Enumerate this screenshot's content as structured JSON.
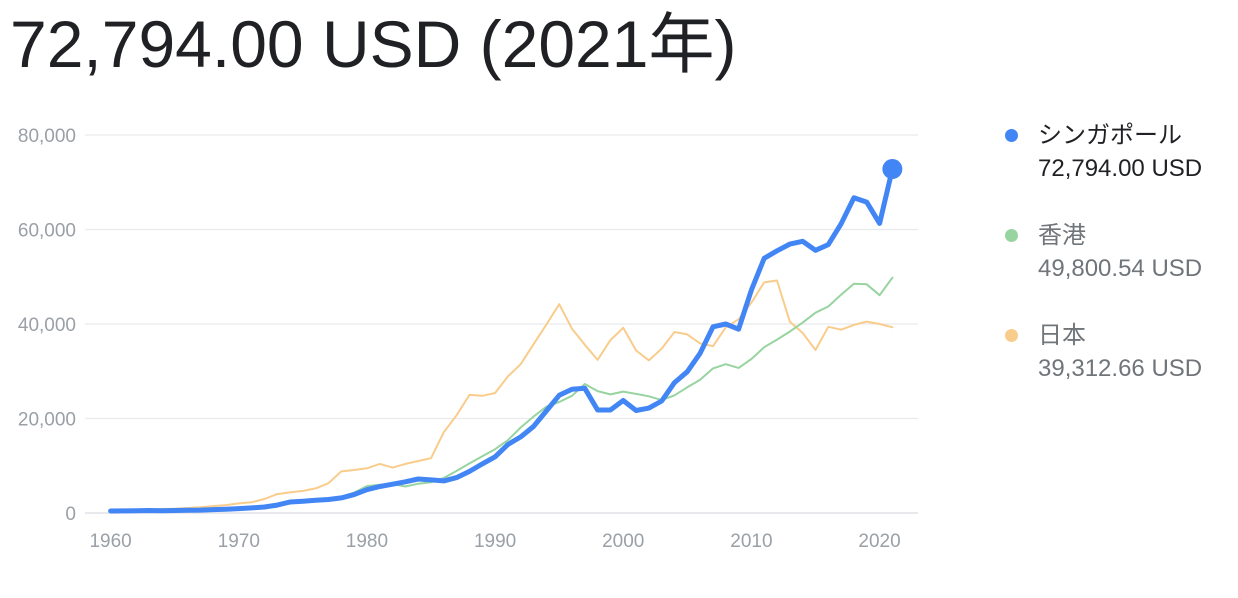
{
  "headline": "72,794.00 USD (2021年)",
  "legend": [
    {
      "name": "シンガポール",
      "value": "72,794.00 USD"
    },
    {
      "name": "香港",
      "value": "49,800.54 USD"
    },
    {
      "name": "日本",
      "value": "39,312.66 USD"
    }
  ],
  "colors": {
    "singapore": "#4285f4",
    "hongkong": "#97d4a0",
    "japan": "#f9cc8c",
    "grid": "#e8eaed",
    "tick_text": "#9aa0a6"
  },
  "chart_data": {
    "type": "line",
    "title": "",
    "xlabel": "",
    "ylabel": "",
    "xlim": [
      1960,
      2021
    ],
    "ylim": [
      0,
      80000
    ],
    "grid": true,
    "legend_position": "right",
    "y_ticks": [
      0,
      20000,
      40000,
      60000,
      80000
    ],
    "y_tick_labels": [
      "0",
      "20,000",
      "40,000",
      "60,000",
      "80,000"
    ],
    "x_ticks": [
      1960,
      1970,
      1980,
      1990,
      2000,
      2010,
      2020
    ],
    "x_tick_labels": [
      "1960",
      "1970",
      "1980",
      "1990",
      "2000",
      "2010",
      "2020"
    ],
    "x": [
      1960,
      1961,
      1962,
      1963,
      1964,
      1965,
      1966,
      1967,
      1968,
      1969,
      1970,
      1971,
      1972,
      1973,
      1974,
      1975,
      1976,
      1977,
      1978,
      1979,
      1980,
      1981,
      1982,
      1983,
      1984,
      1985,
      1986,
      1987,
      1988,
      1989,
      1990,
      1991,
      1992,
      1993,
      1994,
      1995,
      1996,
      1997,
      1998,
      1999,
      2000,
      2001,
      2002,
      2003,
      2004,
      2005,
      2006,
      2007,
      2008,
      2009,
      2010,
      2011,
      2012,
      2013,
      2014,
      2015,
      2016,
      2017,
      2018,
      2019,
      2020,
      2021
    ],
    "series": [
      {
        "name": "シンガポール",
        "values": [
          430,
          450,
          480,
          520,
          490,
          520,
          570,
          620,
          710,
          810,
          930,
          1080,
          1270,
          1680,
          2330,
          2500,
          2700,
          2850,
          3200,
          3900,
          4930,
          5600,
          6100,
          6600,
          7200,
          7000,
          6800,
          7500,
          8800,
          10400,
          11900,
          14500,
          16100,
          18300,
          21600,
          24900,
          26200,
          26400,
          21800,
          21800,
          23800,
          21700,
          22200,
          23700,
          27600,
          29900,
          33800,
          39400,
          40000,
          38900,
          47200,
          53900,
          55500,
          56900,
          57500,
          55600,
          56800,
          61200,
          66700,
          65800,
          61300,
          72794
        ]
      },
      {
        "name": "香港",
        "values": [
          430,
          450,
          480,
          530,
          580,
          680,
          710,
          700,
          720,
          840,
          960,
          1100,
          1380,
          1860,
          2100,
          2250,
          2790,
          3080,
          3400,
          4300,
          5700,
          5990,
          6130,
          5600,
          6200,
          6500,
          7400,
          8900,
          10500,
          12000,
          13500,
          15400,
          18100,
          20400,
          22500,
          23500,
          24800,
          27300,
          25800,
          25100,
          25700,
          25200,
          24700,
          23900,
          24900,
          26600,
          28200,
          30600,
          31500,
          30700,
          32600,
          35100,
          36700,
          38400,
          40300,
          42400,
          43700,
          46200,
          48500,
          48400,
          46100,
          49800
        ]
      },
      {
        "name": "日本",
        "values": [
          480,
          560,
          630,
          720,
          840,
          920,
          1060,
          1230,
          1450,
          1670,
          2040,
          2270,
          2970,
          3990,
          4350,
          4670,
          5200,
          6300,
          8800,
          9100,
          9460,
          10400,
          9600,
          10400,
          11000,
          11600,
          17100,
          20700,
          25000,
          24800,
          25400,
          28900,
          31500,
          35700,
          39900,
          44200,
          39000,
          35600,
          32400,
          36600,
          39200,
          34400,
          32300,
          34800,
          38300,
          37800,
          35900,
          35300,
          39300,
          41000,
          44500,
          48800,
          49200,
          40500,
          38100,
          34500,
          39400,
          38800,
          39800,
          40500,
          40000,
          39313
        ]
      }
    ]
  }
}
